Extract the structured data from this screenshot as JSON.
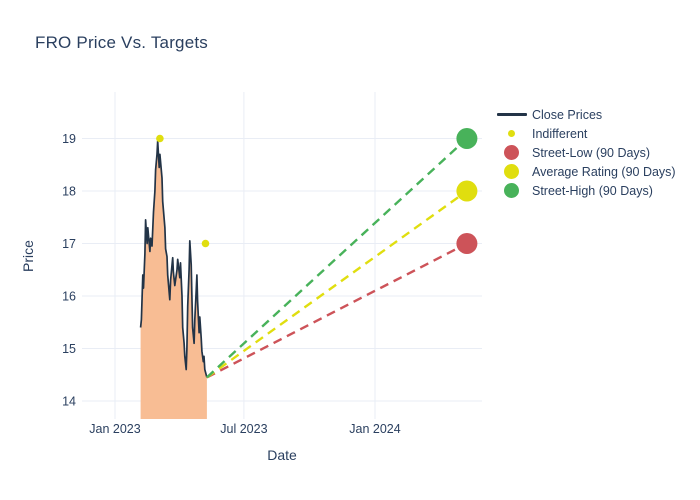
{
  "title": "FRO Price Vs. Targets",
  "colors": {
    "text": "#2a3f5f",
    "gridline": "#e9edf5",
    "background": "#ffffff"
  },
  "legend": {
    "items": [
      {
        "label": "Close Prices",
        "swatch": "line",
        "color": "#233447"
      },
      {
        "label": "Indifferent",
        "swatch": "dot-sm",
        "color": "#e0de0f"
      },
      {
        "label": "Street-Low (90 Days)",
        "swatch": "dot-lg",
        "color": "#cd5359"
      },
      {
        "label": "Average Rating (90 Days)",
        "swatch": "dot-lg",
        "color": "#e0de0f"
      },
      {
        "label": "Street-High (90 Days)",
        "swatch": "dot-lg",
        "color": "#48b25a"
      }
    ]
  },
  "chart_data": {
    "type": "line",
    "title": "FRO Price Vs. Targets",
    "xlabel": "Date",
    "ylabel": "Price",
    "grid": true,
    "legend_position": "right",
    "ylim": [
      13.6,
      19.9
    ],
    "x_axis": {
      "ticks": [
        "Jan 2023",
        "Jul 2023",
        "Jan 2024"
      ],
      "tick_dates": [
        "2023-01-01",
        "2023-07-01",
        "2024-01-01"
      ]
    },
    "y_axis": {
      "ticks": [
        14,
        15,
        16,
        17,
        18,
        19
      ]
    },
    "series": [
      {
        "name": "Close Prices",
        "type": "line",
        "color": "#233447",
        "fill_color": "#f8bd94",
        "fill": "tozero",
        "dates": [
          "2023-02-06",
          "2023-02-07",
          "2023-02-09",
          "2023-02-10",
          "2023-02-12",
          "2023-02-13",
          "2023-02-15",
          "2023-02-16",
          "2023-02-19",
          "2023-02-20",
          "2023-02-22",
          "2023-02-24",
          "2023-02-26",
          "2023-02-27",
          "2023-03-01",
          "2023-03-02",
          "2023-03-04",
          "2023-03-05",
          "2023-03-08",
          "2023-03-09",
          "2023-03-12",
          "2023-03-13",
          "2023-03-15",
          "2023-03-16",
          "2023-03-19",
          "2023-03-20",
          "2023-03-23",
          "2023-03-24",
          "2023-03-26",
          "2023-03-29",
          "2023-03-30",
          "2023-04-02",
          "2023-04-03",
          "2023-04-05",
          "2023-04-06",
          "2023-04-08",
          "2023-04-09",
          "2023-04-11",
          "2023-04-12",
          "2023-04-13",
          "2023-04-15",
          "2023-04-16",
          "2023-04-18",
          "2023-04-19",
          "2023-04-20",
          "2023-04-22",
          "2023-04-23",
          "2023-04-25",
          "2023-04-26",
          "2023-04-27",
          "2023-04-29",
          "2023-04-30",
          "2023-05-02",
          "2023-05-03",
          "2023-05-05",
          "2023-05-06",
          "2023-05-07",
          "2023-05-09",
          "2023-05-10"
        ],
        "values": [
          15.4,
          15.55,
          16.4,
          16.15,
          16.8,
          17.45,
          17.0,
          17.3,
          16.85,
          17.1,
          16.95,
          17.6,
          18.0,
          18.4,
          18.7,
          18.95,
          18.45,
          18.7,
          18.25,
          17.8,
          17.3,
          16.9,
          16.75,
          16.4,
          15.93,
          16.3,
          16.73,
          16.45,
          16.2,
          16.5,
          16.7,
          16.35,
          16.63,
          16.0,
          15.4,
          15.1,
          14.85,
          14.6,
          15.0,
          15.8,
          16.5,
          17.05,
          16.6,
          16.0,
          15.4,
          15.1,
          15.55,
          16.1,
          16.4,
          15.9,
          15.3,
          15.6,
          15.2,
          14.95,
          14.75,
          14.85,
          14.6,
          14.5,
          14.45
        ]
      },
      {
        "name": "Indifferent",
        "type": "scatter",
        "color": "#e0de0f",
        "dates": [
          "2023-03-05",
          "2023-05-08"
        ],
        "values": [
          19,
          17
        ]
      },
      {
        "name": "Street-Low (90 Days)",
        "type": "dashed_projection",
        "color": "#cd5359",
        "start": {
          "date": "2023-05-10",
          "value": 14.45
        },
        "end": {
          "date": "2024-05-09",
          "value": 17
        }
      },
      {
        "name": "Average Rating (90 Days)",
        "type": "dashed_projection",
        "color": "#e0de0f",
        "start": {
          "date": "2023-05-10",
          "value": 14.45
        },
        "end": {
          "date": "2024-05-09",
          "value": 18
        }
      },
      {
        "name": "Street-High (90 Days)",
        "type": "dashed_projection",
        "color": "#48b25a",
        "start": {
          "date": "2023-05-10",
          "value": 14.45
        },
        "end": {
          "date": "2024-05-09",
          "value": 19
        }
      }
    ]
  }
}
